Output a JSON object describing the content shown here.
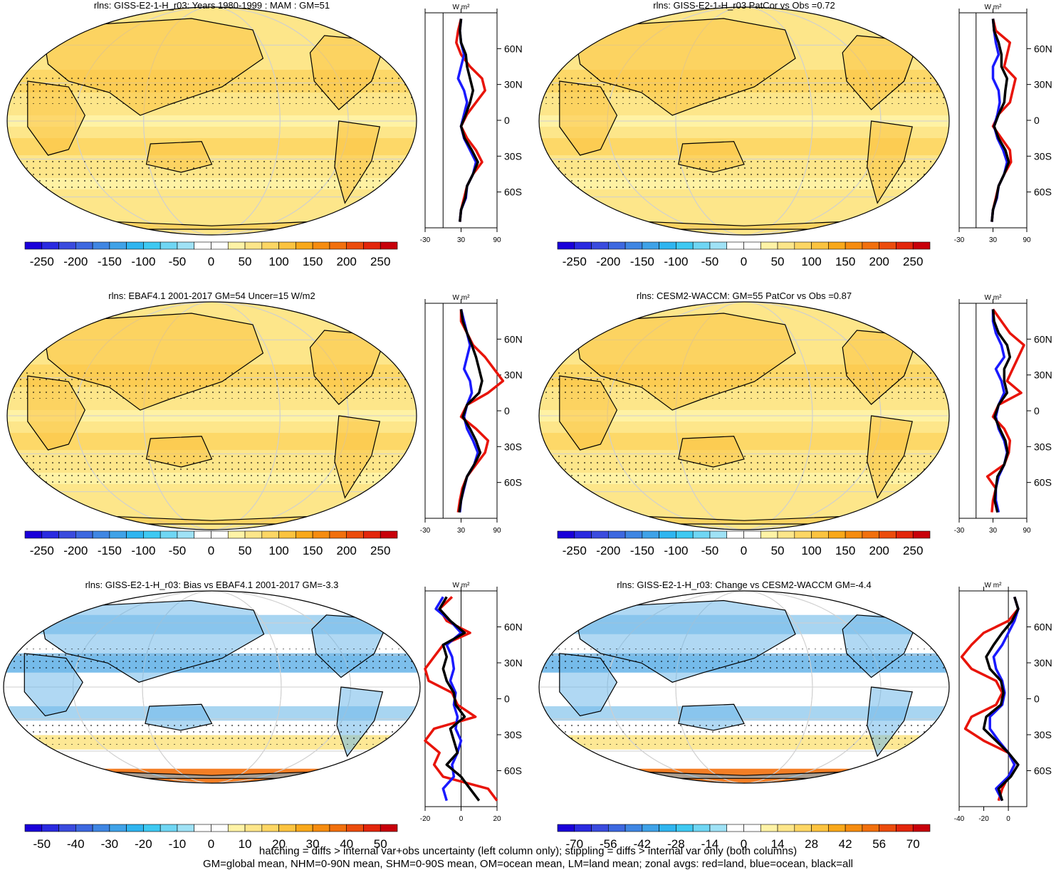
{
  "footer": {
    "line1": "hatching = diffs > internal var+obs uncertainty (left column only); stippling = diffs > internal var only (both columns)",
    "line2": "GM=global mean, NHM=0-90N mean, SHM=0-90S mean, OM=ocean mean, LM=land mean; zonal avgs: red=land, blue=ocean, black=all"
  },
  "colors": {
    "land": "#e8140a",
    "ocean": "#1a1aff",
    "all": "#000000",
    "map_base": "#fde68a",
    "diff_base": "#ffffff"
  },
  "chart_data": [
    {
      "type": "heatmap",
      "title": "rlns: GISS-E2-1-H_r03: Years 1980-1999 : MAM : GM=51",
      "colorbar_labels": [
        "-250",
        "-200",
        "-150",
        "-100",
        "-50",
        "0",
        "50",
        "100",
        "150",
        "200",
        "250"
      ],
      "colorbar_range": [
        -275,
        275
      ],
      "zonal": {
        "unit": "W m²",
        "xticks": [
          "-30",
          "30",
          "90"
        ],
        "xlim": [
          -30,
          90
        ],
        "lat_labels": [
          "60N",
          "30N",
          "0",
          "30S",
          "60S"
        ],
        "lat": [
          85,
          75,
          65,
          55,
          45,
          35,
          25,
          15,
          5,
          -5,
          -15,
          -25,
          -35,
          -45,
          -55,
          -65,
          -75,
          -85
        ],
        "land": [
          30,
          25,
          22,
          30,
          45,
          65,
          70,
          55,
          40,
          30,
          40,
          55,
          65,
          50,
          40,
          35,
          30,
          28
        ],
        "ocean": [
          30,
          28,
          30,
          35,
          30,
          25,
          35,
          40,
          35,
          30,
          35,
          45,
          55,
          50,
          40,
          38,
          30,
          28
        ],
        "all": [
          30,
          28,
          30,
          38,
          40,
          45,
          50,
          45,
          38,
          30,
          36,
          48,
          58,
          50,
          40,
          37,
          30,
          28
        ]
      }
    },
    {
      "type": "heatmap",
      "title": "rlns: GISS-E2-1-H_r03 PatCor vs Obs =0.72",
      "colorbar_labels": [
        "-250",
        "-200",
        "-150",
        "-100",
        "-50",
        "0",
        "50",
        "100",
        "150",
        "200",
        "250"
      ],
      "colorbar_range": [
        -275,
        275
      ],
      "zonal": {
        "unit": "W m²",
        "xticks": [
          "-30",
          "30",
          "90"
        ],
        "xlim": [
          -30,
          90
        ],
        "lat_labels": [
          "60N",
          "30N",
          "0",
          "30S",
          "60S"
        ],
        "lat": [
          85,
          75,
          65,
          55,
          45,
          35,
          25,
          15,
          5,
          -5,
          -15,
          -25,
          -35,
          -45,
          -55,
          -65,
          -75,
          -85
        ],
        "land": [
          30,
          35,
          60,
          55,
          50,
          70,
          65,
          60,
          40,
          30,
          45,
          60,
          62,
          50,
          40,
          35,
          30,
          28
        ],
        "ocean": [
          30,
          32,
          35,
          40,
          30,
          30,
          40,
          42,
          38,
          32,
          38,
          48,
          55,
          50,
          40,
          37,
          30,
          28
        ],
        "all": [
          30,
          32,
          40,
          45,
          45,
          55,
          52,
          50,
          40,
          32,
          40,
          52,
          58,
          50,
          40,
          36,
          30,
          28
        ]
      }
    },
    {
      "type": "heatmap",
      "title": "rlns: EBAF4.1 2001-2017 GM=54 Uncer=15 W/m2",
      "colorbar_labels": [
        "-250",
        "-200",
        "-150",
        "-100",
        "-50",
        "0",
        "50",
        "100",
        "150",
        "200",
        "250"
      ],
      "colorbar_range": [
        -275,
        275
      ],
      "zonal": {
        "unit": "W m²",
        "xticks": [
          "-30",
          "30",
          "90"
        ],
        "xlim": [
          -30,
          90
        ],
        "lat_labels": [
          "60N",
          "30N",
          "0",
          "30S",
          "60S"
        ],
        "lat": [
          85,
          75,
          65,
          55,
          45,
          35,
          25,
          15,
          5,
          -5,
          -15,
          -25,
          -35,
          -45,
          -55,
          -65,
          -75,
          -85
        ],
        "land": [
          30,
          30,
          40,
          50,
          70,
          85,
          100,
          75,
          40,
          30,
          55,
          75,
          70,
          55,
          40,
          32,
          28,
          25
        ],
        "ocean": [
          30,
          35,
          40,
          45,
          40,
          35,
          45,
          48,
          40,
          35,
          40,
          50,
          58,
          52,
          40,
          35,
          30,
          28
        ],
        "all": [
          30,
          33,
          40,
          48,
          55,
          60,
          65,
          60,
          40,
          33,
          45,
          55,
          62,
          52,
          40,
          34,
          30,
          27
        ]
      }
    },
    {
      "type": "heatmap",
      "title": "rlns: CESM2-WACCM: GM=55 PatCor vs Obs =0.87",
      "colorbar_labels": [
        "-250",
        "-200",
        "-150",
        "-100",
        "-50",
        "0",
        "50",
        "100",
        "150",
        "200",
        "250"
      ],
      "colorbar_range": [
        -275,
        275
      ],
      "zonal": {
        "unit": "W m²",
        "xticks": [
          "-30",
          "30",
          "90"
        ],
        "xlim": [
          -30,
          90
        ],
        "lat_labels": [
          "60N",
          "30N",
          "0",
          "30S",
          "60S"
        ],
        "lat": [
          85,
          75,
          65,
          55,
          45,
          35,
          25,
          15,
          5,
          -5,
          -15,
          -25,
          -35,
          -45,
          -55,
          -65,
          -75,
          -85
        ],
        "land": [
          30,
          45,
          60,
          85,
          75,
          65,
          55,
          80,
          40,
          30,
          50,
          60,
          58,
          50,
          20,
          35,
          30,
          28
        ],
        "ocean": [
          30,
          30,
          35,
          45,
          50,
          35,
          45,
          50,
          40,
          35,
          40,
          50,
          55,
          50,
          40,
          35,
          35,
          40
        ],
        "all": [
          30,
          32,
          40,
          55,
          60,
          50,
          50,
          55,
          40,
          33,
          42,
          52,
          56,
          50,
          38,
          35,
          33,
          38
        ]
      }
    },
    {
      "type": "heatmap",
      "title": "rlns: GISS-E2-1-H_r03: Bias vs EBAF4.1 2001-2017 GM=-3.3",
      "colorbar_labels": [
        "-50",
        "-40",
        "-30",
        "-20",
        "-10",
        "0",
        "10",
        "20",
        "30",
        "40",
        "50"
      ],
      "colorbar_range": [
        -55,
        55
      ],
      "zonal": {
        "unit": "W m²",
        "xticks": [
          "-20",
          "0",
          "20"
        ],
        "xlim": [
          -20,
          20
        ],
        "lat_labels": [
          "60N",
          "30N",
          "0",
          "30S",
          "60S"
        ],
        "lat": [
          85,
          75,
          65,
          55,
          45,
          35,
          25,
          15,
          5,
          -5,
          -15,
          -25,
          -35,
          -45,
          -55,
          -65,
          -75,
          -85
        ],
        "land": [
          -5,
          -12,
          -8,
          5,
          -10,
          -15,
          -20,
          -18,
          -5,
          -2,
          8,
          -15,
          -20,
          -12,
          -15,
          -10,
          15,
          20
        ],
        "ocean": [
          -10,
          -14,
          -6,
          0,
          -8,
          -5,
          -4,
          -6,
          -3,
          -4,
          -2,
          -3,
          0,
          -2,
          -5,
          -4,
          -10,
          -8
        ],
        "all": [
          -8,
          -12,
          -6,
          2,
          -10,
          -8,
          -10,
          -8,
          -4,
          -3,
          2,
          -6,
          -4,
          -2,
          -8,
          0,
          5,
          10
        ]
      }
    },
    {
      "type": "heatmap",
      "title": "rlns: GISS-E2-1-H_r03: Change vs CESM2-WACCM GM=-4.4",
      "colorbar_labels": [
        "-70",
        "-56",
        "-42",
        "-28",
        "-14",
        "0",
        "14",
        "28",
        "42",
        "56",
        "70"
      ],
      "colorbar_range": [
        -77,
        77
      ],
      "zonal": {
        "unit": "W m²",
        "xticks": [
          "-40",
          "-20",
          "0"
        ],
        "xlim": [
          -40,
          15
        ],
        "lat_labels": [
          "60N",
          "30N",
          "0",
          "30S",
          "60S"
        ],
        "lat": [
          85,
          75,
          65,
          55,
          45,
          35,
          25,
          15,
          5,
          -5,
          -15,
          -25,
          -35,
          -45,
          -55,
          -65,
          -75,
          -85
        ],
        "land": [
          5,
          8,
          0,
          -20,
          -30,
          -38,
          -30,
          -10,
          -5,
          -10,
          -30,
          -35,
          -20,
          0,
          5,
          0,
          -5,
          -8
        ],
        "ocean": [
          5,
          8,
          5,
          0,
          -5,
          -12,
          -10,
          -5,
          -3,
          -5,
          -15,
          -15,
          -8,
          0,
          5,
          0,
          -10,
          -5
        ],
        "all": [
          5,
          8,
          3,
          -5,
          -12,
          -18,
          -15,
          -6,
          -4,
          -6,
          -18,
          -20,
          -10,
          0,
          8,
          2,
          -8,
          -5
        ]
      }
    }
  ]
}
